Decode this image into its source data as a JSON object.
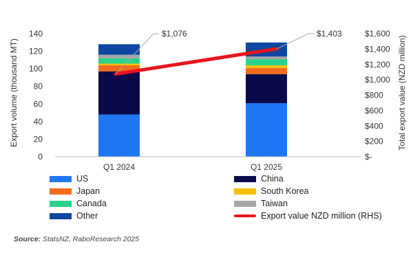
{
  "chart_data": {
    "type": "bar",
    "stacked": true,
    "categories": [
      "Q1 2024",
      "Q1 2025"
    ],
    "series": [
      {
        "name": "US",
        "color": "#1f77f4",
        "values": [
          48,
          61
        ]
      },
      {
        "name": "China",
        "color": "#0a0a4a",
        "values": [
          49,
          33
        ]
      },
      {
        "name": "Japan",
        "color": "#f26b1d",
        "values": [
          7,
          7
        ]
      },
      {
        "name": "South Korea",
        "color": "#f5c00d",
        "values": [
          2,
          3
        ]
      },
      {
        "name": "Canada",
        "color": "#2ad38b",
        "values": [
          6,
          7
        ]
      },
      {
        "name": "Taiwan",
        "color": "#a6a6a6",
        "values": [
          4,
          3
        ]
      },
      {
        "name": "Other",
        "color": "#0d47a1",
        "values": [
          12,
          16
        ]
      }
    ],
    "line_series": {
      "name": "Export value NZD million (RHS)",
      "color": "#e8141c",
      "values": [
        1076,
        1403
      ],
      "labels": [
        "$1,076",
        "$1,403"
      ]
    },
    "ylabel": "Export volume (thousand MT)",
    "y2label": "Total export value (NZD million)",
    "ylim": [
      0,
      140
    ],
    "yticks": [
      "0",
      "20",
      "40",
      "60",
      "80",
      "100",
      "120",
      "140"
    ],
    "y2lim": [
      0,
      1600
    ],
    "y2ticks": [
      "$-",
      "$200",
      "$400",
      "$600",
      "$800",
      "$1,000",
      "$1,200",
      "$1,400",
      "$1,600"
    ],
    "grid": false,
    "legend_position": "bottom"
  },
  "source": {
    "label": "Source:",
    "text": "StatsNZ, RaboResearch 2025"
  }
}
